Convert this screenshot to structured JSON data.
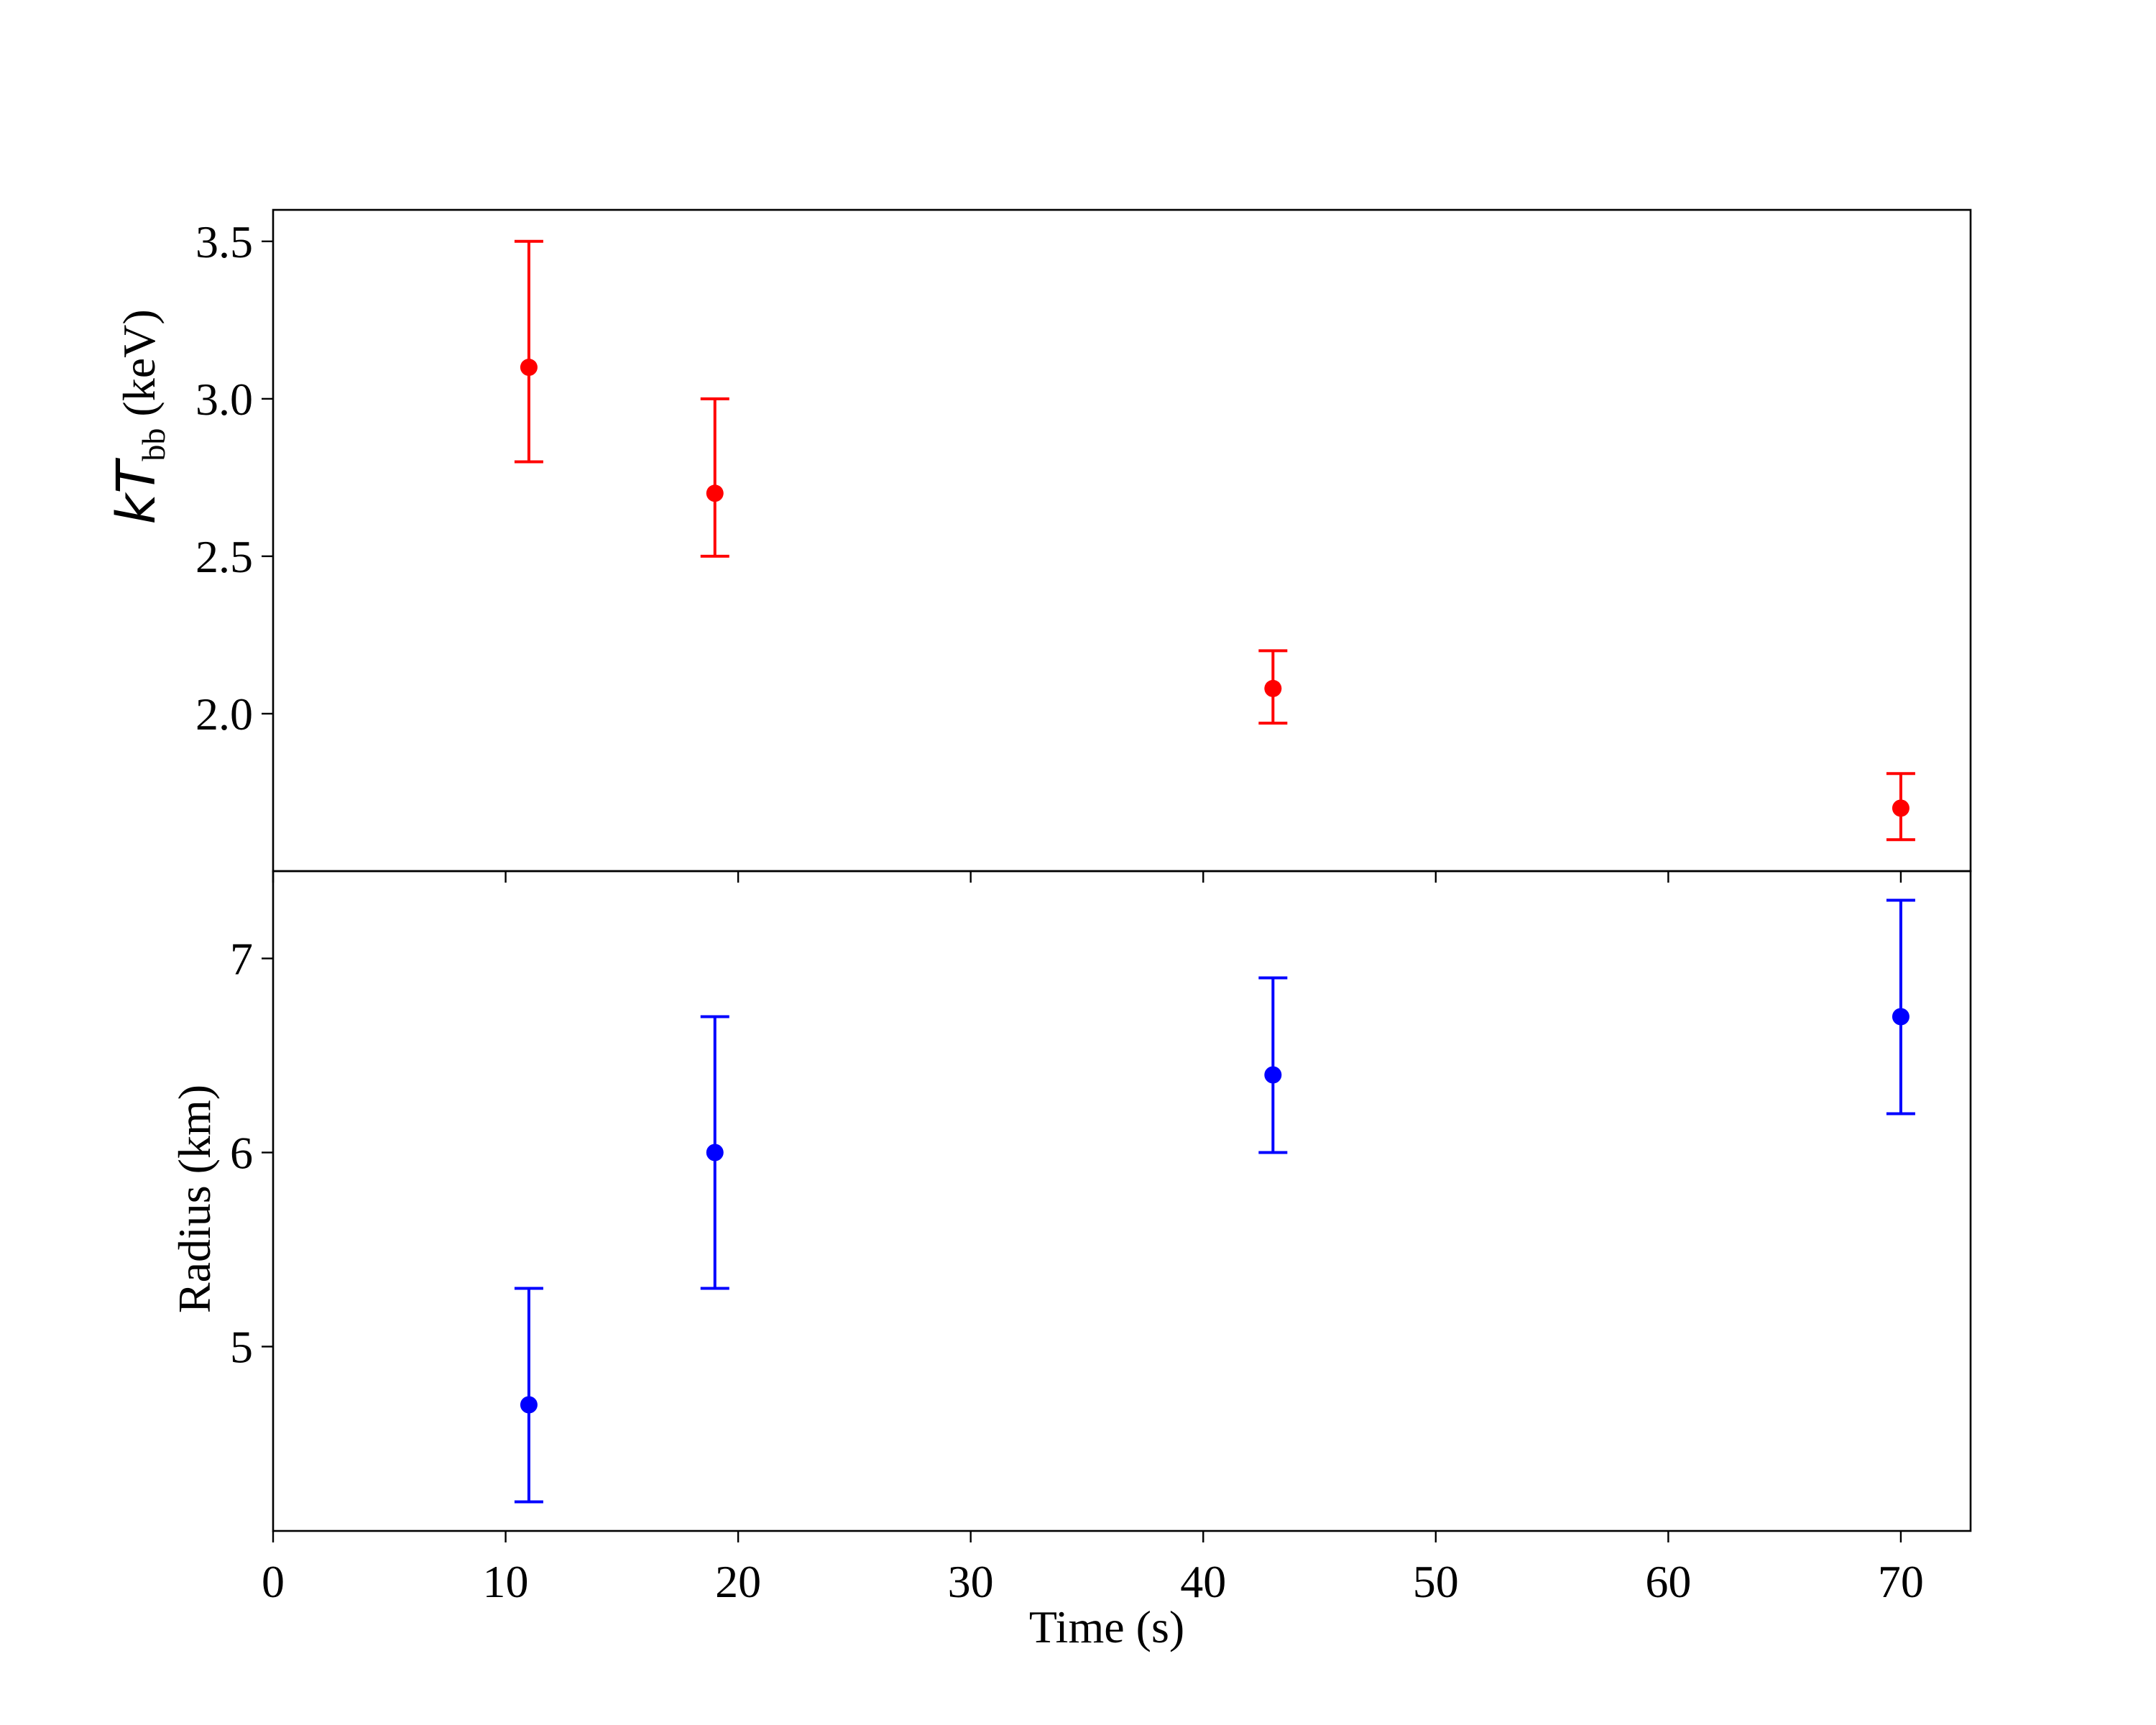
{
  "chart_data": [
    {
      "type": "scatter",
      "panel": "top",
      "ylabel": {
        "prefix": "k",
        "italic": "T",
        "subscript": "bb",
        "suffix": " (keV)"
      },
      "ylim": [
        1.5,
        3.6
      ],
      "yticks": [
        2.0,
        2.5,
        3.0,
        3.5
      ],
      "ytick_labels": [
        "2.0",
        "2.5",
        "3.0",
        "3.5"
      ],
      "color": "#ff0000",
      "points": [
        {
          "x": 11,
          "y": 3.1,
          "ylow": 2.8,
          "yhigh": 3.5
        },
        {
          "x": 19,
          "y": 2.7,
          "ylow": 2.5,
          "yhigh": 3.0
        },
        {
          "x": 43,
          "y": 2.08,
          "ylow": 1.97,
          "yhigh": 2.2
        },
        {
          "x": 70,
          "y": 1.7,
          "ylow": 1.6,
          "yhigh": 1.81
        }
      ]
    },
    {
      "type": "scatter",
      "panel": "bottom",
      "ylabel": {
        "text": "Radius (km)"
      },
      "ylim": [
        4.05,
        7.45
      ],
      "yticks": [
        5,
        6,
        7
      ],
      "ytick_labels": [
        "5",
        "6",
        "7"
      ],
      "color": "#0000ff",
      "points": [
        {
          "x": 11,
          "y": 4.7,
          "ylow": 4.2,
          "yhigh": 5.3
        },
        {
          "x": 19,
          "y": 6.0,
          "ylow": 5.3,
          "yhigh": 6.7
        },
        {
          "x": 43,
          "y": 6.4,
          "ylow": 6.0,
          "yhigh": 6.9
        },
        {
          "x": 70,
          "y": 6.7,
          "ylow": 6.2,
          "yhigh": 7.3
        }
      ]
    }
  ],
  "xaxis": {
    "label": "Time (s)",
    "xlim": [
      0,
      73
    ],
    "ticks": [
      0,
      10,
      20,
      30,
      40,
      50,
      60,
      70
    ],
    "tick_labels": [
      "0",
      "10",
      "20",
      "30",
      "40",
      "50",
      "60",
      "70"
    ]
  }
}
